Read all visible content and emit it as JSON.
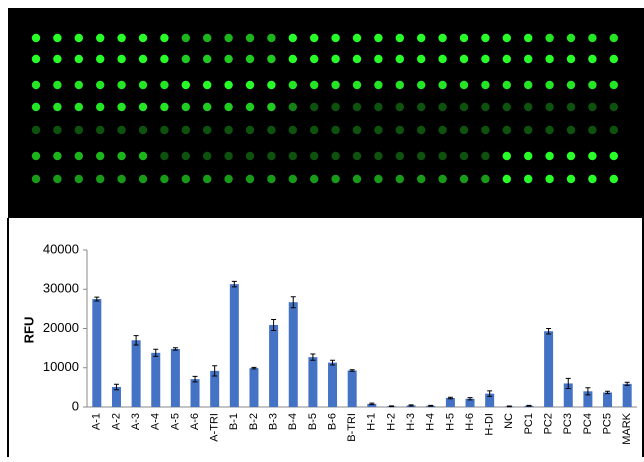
{
  "chart_data": {
    "type": "bar",
    "ylabel": "RFU",
    "categories": [
      "A-1",
      "A-2",
      "A-3",
      "A-4",
      "A-5",
      "A-6",
      "A-TRI",
      "B-1",
      "B-2",
      "B-3",
      "B-4",
      "B-5",
      "B-6",
      "B-TRI",
      "H-1",
      "H-2",
      "H-3",
      "H-4",
      "H-5",
      "H-6",
      "H-DI",
      "NC",
      "PC1",
      "PC2",
      "PC3",
      "PC4",
      "PC5",
      "MARK"
    ],
    "values": [
      27500,
      5100,
      17000,
      13800,
      14800,
      7100,
      9200,
      31300,
      9900,
      20900,
      26700,
      12700,
      11300,
      9300,
      800,
      200,
      400,
      300,
      2300,
      2100,
      3400,
      150,
      300,
      19300,
      6000,
      4000,
      3700,
      5900
    ],
    "errors": [
      500,
      700,
      1200,
      900,
      300,
      700,
      1300,
      700,
      200,
      1400,
      1400,
      800,
      600,
      200,
      200,
      100,
      150,
      100,
      200,
      300,
      700,
      100,
      100,
      700,
      1300,
      900,
      300,
      400
    ],
    "color": "#4472c4",
    "ylim": [
      0,
      40000
    ],
    "yticks": [
      0,
      10000,
      20000,
      30000,
      40000
    ]
  }
}
